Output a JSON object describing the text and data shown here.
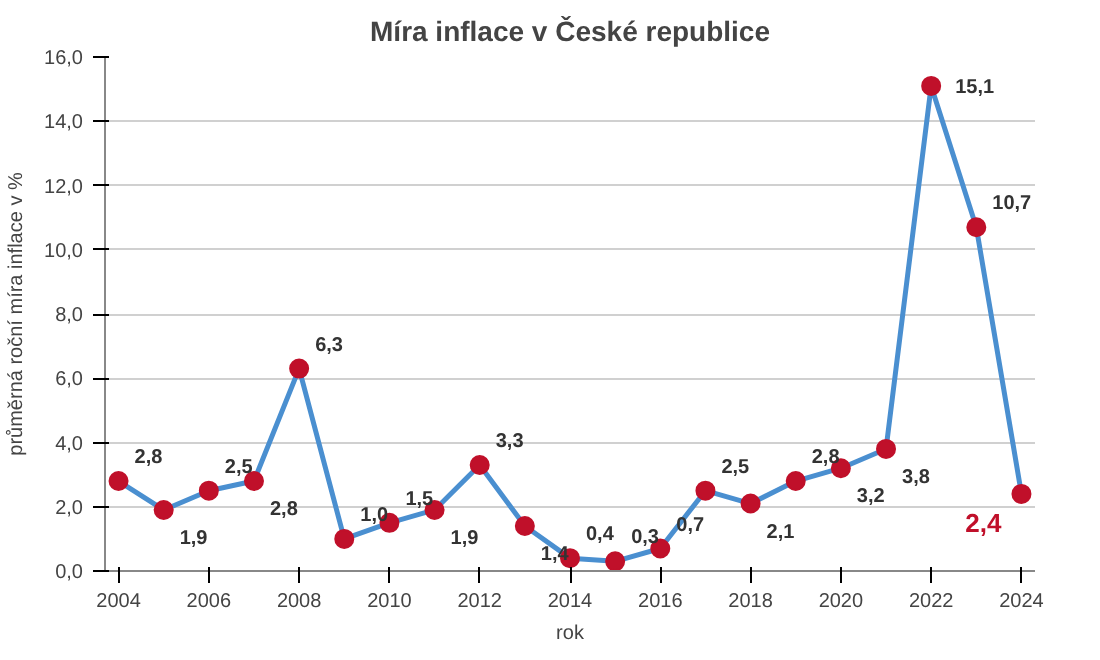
{
  "chart_data": {
    "type": "line",
    "title": "Míra inflace v České republice",
    "xlabel": "rok",
    "ylabel": "průměrná roční míra inflace v %",
    "x": [
      2004,
      2005,
      2006,
      2007,
      2008,
      2009,
      2010,
      2011,
      2012,
      2013,
      2014,
      2015,
      2016,
      2017,
      2018,
      2019,
      2020,
      2021,
      2022,
      2023,
      2024
    ],
    "series": [
      {
        "color": "#4a8fd0",
        "values": [
          2.8,
          1.9,
          2.5,
          2.8,
          6.3,
          1.0,
          1.5,
          1.9,
          3.3,
          1.4,
          0.4,
          0.3,
          0.7,
          2.5,
          2.1,
          2.8,
          3.2,
          3.8,
          15.1,
          10.7,
          2.4
        ],
        "value_labels": [
          "2,8",
          "1,9",
          "2,5",
          "2,8",
          "6,3",
          "1,0",
          "1,5",
          "1,9",
          "3,3",
          "1,4",
          "0,4",
          "0,3",
          "0,7",
          "2,5",
          "2,1",
          "2,8",
          "3,2",
          "3,8",
          "15,1",
          "10,7",
          "2,4"
        ]
      }
    ],
    "marker": "circle",
    "line_style": "solid",
    "grid": "y",
    "xlim": [
      2003.7,
      2024.3
    ],
    "xticks": [
      2004,
      2006,
      2008,
      2010,
      2012,
      2014,
      2016,
      2018,
      2020,
      2022,
      2024
    ],
    "ylim": [
      0,
      16
    ],
    "yticks": [
      {
        "value": 0,
        "label": "0,0"
      },
      {
        "value": 2,
        "label": "2,0"
      },
      {
        "value": 4,
        "label": "4,0"
      },
      {
        "value": 6,
        "label": "6,0"
      },
      {
        "value": 8,
        "label": "8,0"
      },
      {
        "value": 10,
        "label": "10,0"
      },
      {
        "value": 12,
        "label": "12,0"
      },
      {
        "value": 14,
        "label": "14,0"
      },
      {
        "value": 16,
        "label": "16,0"
      }
    ]
  }
}
